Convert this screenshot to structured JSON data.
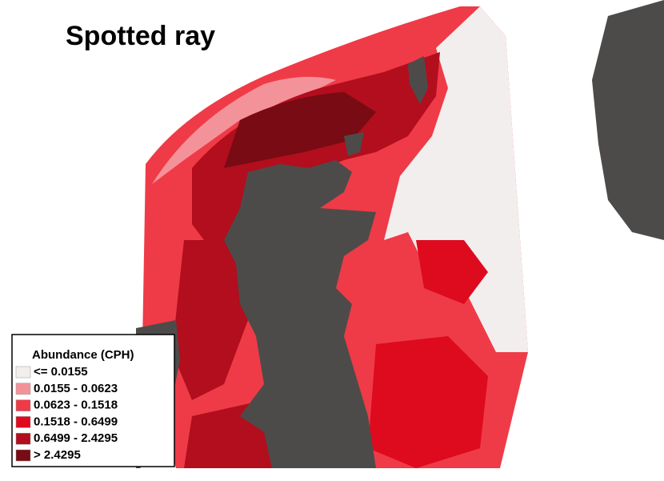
{
  "title": "Spotted ray",
  "legend": {
    "title": "Abundance (CPH)",
    "entries": [
      {
        "label": "<= 0.0155",
        "color": "#f3eeee"
      },
      {
        "label": "0.0155 - 0.0623",
        "color": "#f4929a"
      },
      {
        "label": "0.0623 - 0.1518",
        "color": "#ef3b47"
      },
      {
        "label": "0.1518 - 0.6499",
        "color": "#de0a1e"
      },
      {
        "label": "0.6499 - 2.4295",
        "color": "#b20e1d"
      },
      {
        "label": "> 2.4295",
        "color": "#780b13"
      }
    ]
  }
}
